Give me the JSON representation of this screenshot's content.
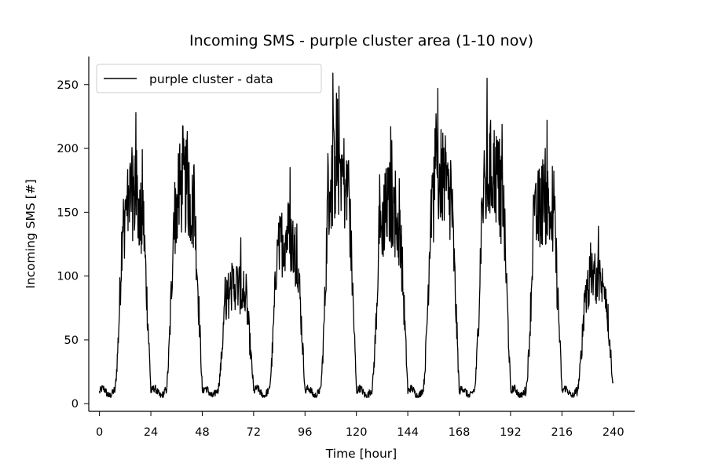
{
  "chart_data": {
    "type": "line",
    "title": "Incoming SMS - purple cluster area (1-10 nov)",
    "xlabel": "Time [hour]",
    "ylabel": "Incoming SMS [#]",
    "xlim": [
      -5,
      250
    ],
    "ylim": [
      -6,
      272
    ],
    "x_ticks": [
      0,
      24,
      48,
      72,
      96,
      120,
      144,
      168,
      192,
      216,
      240
    ],
    "y_ticks": [
      0,
      50,
      100,
      150,
      200,
      250
    ],
    "grid": false,
    "legend_position": "top-left",
    "sampling_interval_hours": 0.1667,
    "series": [
      {
        "name": "purple cluster - data",
        "color": "#000000",
        "day_peaks": [
          {
            "start": 0,
            "peak_hour": 17,
            "peak": 228
          },
          {
            "start": 24,
            "peak_hour": 41,
            "peak": 237
          },
          {
            "start": 48,
            "peak_hour": 66,
            "peak": 130
          },
          {
            "start": 72,
            "peak_hour": 89,
            "peak": 185
          },
          {
            "start": 96,
            "peak_hour": 109,
            "peak": 259
          },
          {
            "start": 120,
            "peak_hour": 136,
            "peak": 217
          },
          {
            "start": 144,
            "peak_hour": 158,
            "peak": 247
          },
          {
            "start": 168,
            "peak_hour": 181,
            "peak": 255
          },
          {
            "start": 192,
            "peak_hour": 209,
            "peak": 222
          },
          {
            "start": 216,
            "peak_hour": 233,
            "peak": 139
          }
        ]
      }
    ]
  }
}
